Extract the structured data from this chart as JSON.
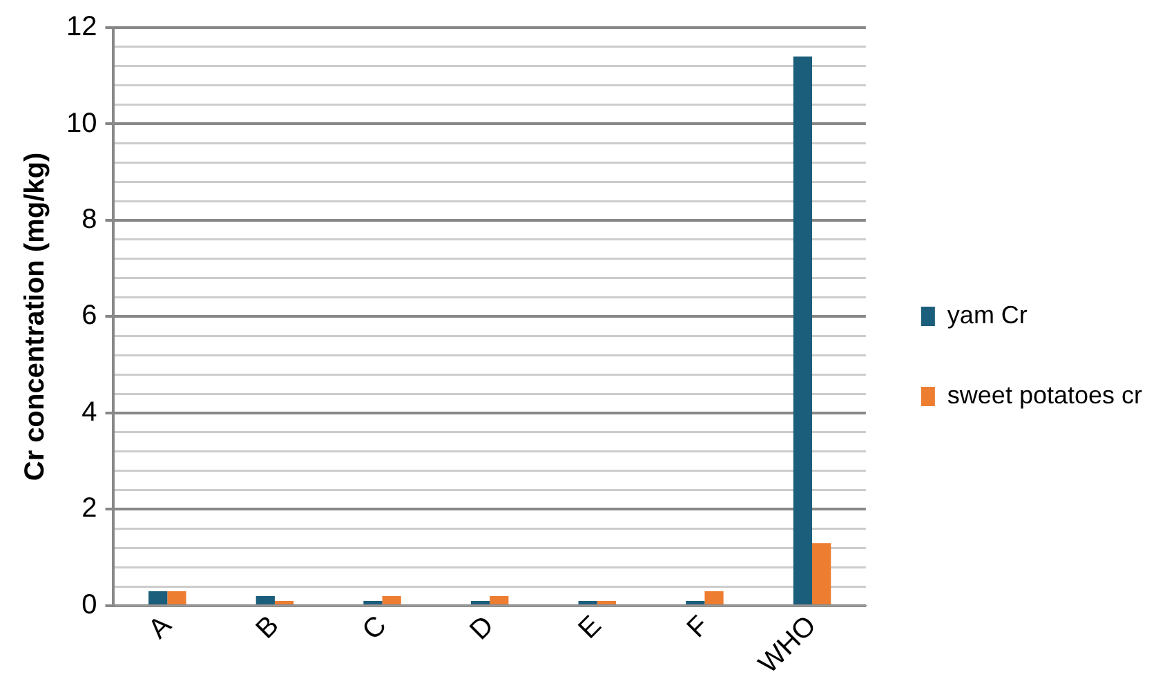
{
  "chart_data": {
    "type": "bar",
    "ylabel": "Cr concentration (mg/kg)",
    "categories": [
      "A",
      "B",
      "C",
      "D",
      "E",
      "F",
      "WHO"
    ],
    "series": [
      {
        "name": "yam Cr",
        "color": "#1b5e7b",
        "values": [
          0.3,
          0.2,
          0.1,
          0.1,
          0.1,
          0.1,
          11.4
        ]
      },
      {
        "name": "sweet potatoes cr",
        "color": "#ed7d31",
        "values": [
          0.3,
          0.1,
          0.2,
          0.2,
          0.1,
          0.3,
          1.3
        ]
      }
    ],
    "ylim": [
      0,
      12
    ],
    "yticks": [
      0,
      {
        "value": 0.4,
        "label": null
      },
      {
        "value": 0.8,
        "label": null
      },
      {
        "value": 1.2,
        "label": null
      },
      {
        "value": 1.6,
        "label": null
      },
      2,
      {
        "value": 2.4,
        "label": null
      },
      {
        "value": 2.8,
        "label": null
      },
      {
        "value": 3.2,
        "label": null
      },
      {
        "value": 3.6,
        "label": null
      },
      4,
      {
        "value": 4.4,
        "label": null
      },
      {
        "value": 4.8,
        "label": null
      },
      {
        "value": 5.2,
        "label": null
      },
      {
        "value": 5.6,
        "label": null
      },
      6,
      {
        "value": 6.4,
        "label": null
      },
      {
        "value": 6.8,
        "label": null
      },
      {
        "value": 7.2,
        "label": null
      },
      {
        "value": 7.6,
        "label": null
      },
      8,
      {
        "value": 8.4,
        "label": null
      },
      {
        "value": 8.8,
        "label": null
      },
      {
        "value": 9.2,
        "label": null
      },
      {
        "value": 9.6,
        "label": null
      },
      10,
      {
        "value": 10.4,
        "label": null
      },
      {
        "value": 10.8,
        "label": null
      },
      {
        "value": 11.2,
        "label": null
      },
      {
        "value": 11.6,
        "label": null
      },
      12
    ],
    "grid": true,
    "legend": "right"
  }
}
